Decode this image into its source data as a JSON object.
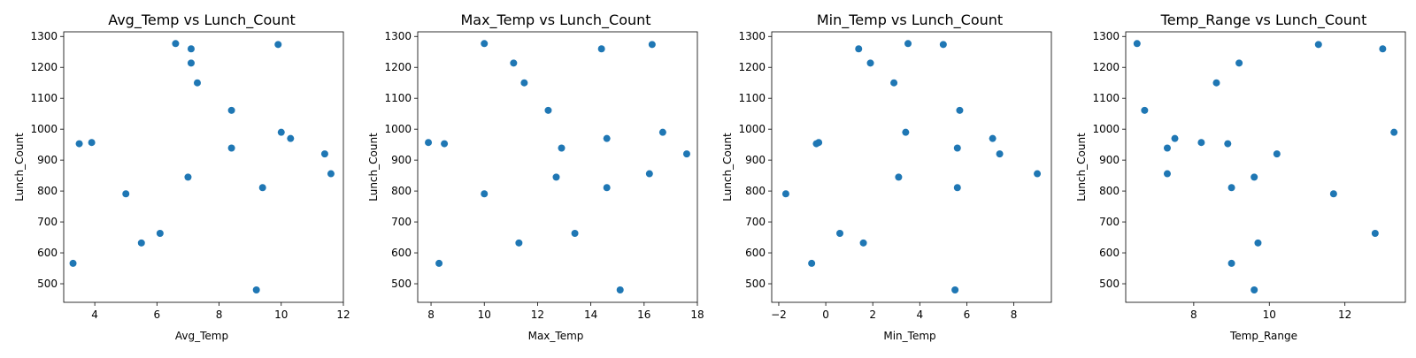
{
  "charts": [
    {
      "title": "Avg_Temp vs Lunch_Count",
      "xlabel": "Avg_Temp",
      "ylabel": "Lunch_Count",
      "xlim": [
        3.0,
        12.0
      ],
      "ylim": [
        440,
        1315
      ],
      "xticks": [
        4,
        6,
        8,
        10,
        12
      ],
      "yticks": [
        500,
        600,
        700,
        800,
        900,
        1000,
        1100,
        1200,
        1300
      ]
    },
    {
      "title": "Max_Temp vs Lunch_Count",
      "xlabel": "Max_Temp",
      "ylabel": "Lunch_Count",
      "xlim": [
        7.5,
        18.0
      ],
      "ylim": [
        440,
        1315
      ],
      "xticks": [
        8,
        10,
        12,
        14,
        16,
        18
      ],
      "yticks": [
        500,
        600,
        700,
        800,
        900,
        1000,
        1100,
        1200,
        1300
      ]
    },
    {
      "title": "Min_Temp vs Lunch_Count",
      "xlabel": "Min_Temp",
      "ylabel": "Lunch_Count",
      "xlim": [
        -2.3,
        9.6
      ],
      "ylim": [
        440,
        1315
      ],
      "xticks": [
        "-2",
        0,
        2,
        4,
        6,
        8
      ],
      "yticks": [
        500,
        600,
        700,
        800,
        900,
        1000,
        1100,
        1200,
        1300
      ]
    },
    {
      "title": "Temp_Range vs Lunch_Count",
      "xlabel": "Temp_Range",
      "ylabel": "Lunch_Count",
      "xlim": [
        6.2,
        13.6
      ],
      "ylim": [
        440,
        1315
      ],
      "xticks": [
        8,
        10,
        12
      ],
      "yticks": [
        500,
        600,
        700,
        800,
        900,
        1000,
        1100,
        1200,
        1300
      ]
    }
  ],
  "chart_data": [
    {
      "type": "scatter",
      "title": "Avg_Temp vs Lunch_Count",
      "xlabel": "Avg_Temp",
      "ylabel": "Lunch_Count",
      "xlim": [
        3.0,
        12.0
      ],
      "ylim": [
        440,
        1315
      ],
      "color": "#1f77b4",
      "grid": false,
      "points": [
        {
          "x": 3.3,
          "y": 566
        },
        {
          "x": 3.5,
          "y": 953
        },
        {
          "x": 3.9,
          "y": 957
        },
        {
          "x": 5.0,
          "y": 791
        },
        {
          "x": 5.5,
          "y": 632
        },
        {
          "x": 6.1,
          "y": 663
        },
        {
          "x": 6.6,
          "y": 1277
        },
        {
          "x": 7.0,
          "y": 845
        },
        {
          "x": 7.1,
          "y": 1260
        },
        {
          "x": 7.1,
          "y": 1214
        },
        {
          "x": 7.3,
          "y": 1150
        },
        {
          "x": 8.4,
          "y": 1061
        },
        {
          "x": 8.4,
          "y": 939
        },
        {
          "x": 9.2,
          "y": 480
        },
        {
          "x": 9.4,
          "y": 811
        },
        {
          "x": 9.9,
          "y": 1274
        },
        {
          "x": 10.0,
          "y": 990
        },
        {
          "x": 10.3,
          "y": 970
        },
        {
          "x": 11.4,
          "y": 920
        },
        {
          "x": 11.6,
          "y": 856
        }
      ]
    },
    {
      "type": "scatter",
      "title": "Max_Temp vs Lunch_Count",
      "xlabel": "Max_Temp",
      "ylabel": "Lunch_Count",
      "xlim": [
        7.5,
        18.0
      ],
      "ylim": [
        440,
        1315
      ],
      "color": "#1f77b4",
      "grid": false,
      "points": [
        {
          "x": 7.9,
          "y": 957
        },
        {
          "x": 8.3,
          "y": 566
        },
        {
          "x": 8.5,
          "y": 953
        },
        {
          "x": 10.0,
          "y": 791
        },
        {
          "x": 10.0,
          "y": 1277
        },
        {
          "x": 11.1,
          "y": 1214
        },
        {
          "x": 11.3,
          "y": 632
        },
        {
          "x": 11.5,
          "y": 1150
        },
        {
          "x": 12.4,
          "y": 1061
        },
        {
          "x": 12.7,
          "y": 845
        },
        {
          "x": 12.9,
          "y": 939
        },
        {
          "x": 13.4,
          "y": 663
        },
        {
          "x": 14.4,
          "y": 1260
        },
        {
          "x": 14.6,
          "y": 970
        },
        {
          "x": 14.6,
          "y": 811
        },
        {
          "x": 15.1,
          "y": 480
        },
        {
          "x": 16.2,
          "y": 856
        },
        {
          "x": 16.3,
          "y": 1274
        },
        {
          "x": 16.7,
          "y": 990
        },
        {
          "x": 17.6,
          "y": 920
        }
      ]
    },
    {
      "type": "scatter",
      "title": "Min_Temp vs Lunch_Count",
      "xlabel": "Min_Temp",
      "ylabel": "Lunch_Count",
      "xlim": [
        -2.3,
        9.6
      ],
      "ylim": [
        440,
        1315
      ],
      "color": "#1f77b4",
      "grid": false,
      "points": [
        {
          "x": -1.7,
          "y": 791
        },
        {
          "x": -0.6,
          "y": 566
        },
        {
          "x": -0.4,
          "y": 953
        },
        {
          "x": -0.3,
          "y": 957
        },
        {
          "x": 0.6,
          "y": 663
        },
        {
          "x": 1.4,
          "y": 1260
        },
        {
          "x": 1.6,
          "y": 632
        },
        {
          "x": 1.9,
          "y": 1214
        },
        {
          "x": 2.9,
          "y": 1150
        },
        {
          "x": 3.1,
          "y": 845
        },
        {
          "x": 3.4,
          "y": 990
        },
        {
          "x": 3.5,
          "y": 1277
        },
        {
          "x": 5.0,
          "y": 1274
        },
        {
          "x": 5.5,
          "y": 480
        },
        {
          "x": 5.6,
          "y": 939
        },
        {
          "x": 5.6,
          "y": 811
        },
        {
          "x": 5.7,
          "y": 1061
        },
        {
          "x": 7.1,
          "y": 970
        },
        {
          "x": 7.4,
          "y": 920
        },
        {
          "x": 9.0,
          "y": 856
        }
      ]
    },
    {
      "type": "scatter",
      "title": "Temp_Range vs Lunch_Count",
      "xlabel": "Temp_Range",
      "ylabel": "Lunch_Count",
      "xlim": [
        6.2,
        13.6
      ],
      "ylim": [
        440,
        1315
      ],
      "color": "#1f77b4",
      "grid": false,
      "points": [
        {
          "x": 6.5,
          "y": 1277
        },
        {
          "x": 6.7,
          "y": 1061
        },
        {
          "x": 7.3,
          "y": 939
        },
        {
          "x": 7.3,
          "y": 856
        },
        {
          "x": 7.5,
          "y": 970
        },
        {
          "x": 8.2,
          "y": 957
        },
        {
          "x": 8.6,
          "y": 1150
        },
        {
          "x": 8.9,
          "y": 953
        },
        {
          "x": 9.0,
          "y": 811
        },
        {
          "x": 9.0,
          "y": 566
        },
        {
          "x": 9.2,
          "y": 1214
        },
        {
          "x": 9.6,
          "y": 845
        },
        {
          "x": 9.6,
          "y": 480
        },
        {
          "x": 9.7,
          "y": 632
        },
        {
          "x": 10.2,
          "y": 920
        },
        {
          "x": 11.3,
          "y": 1274
        },
        {
          "x": 11.7,
          "y": 791
        },
        {
          "x": 12.8,
          "y": 663
        },
        {
          "x": 13.0,
          "y": 1260
        },
        {
          "x": 13.3,
          "y": 990
        }
      ]
    }
  ]
}
